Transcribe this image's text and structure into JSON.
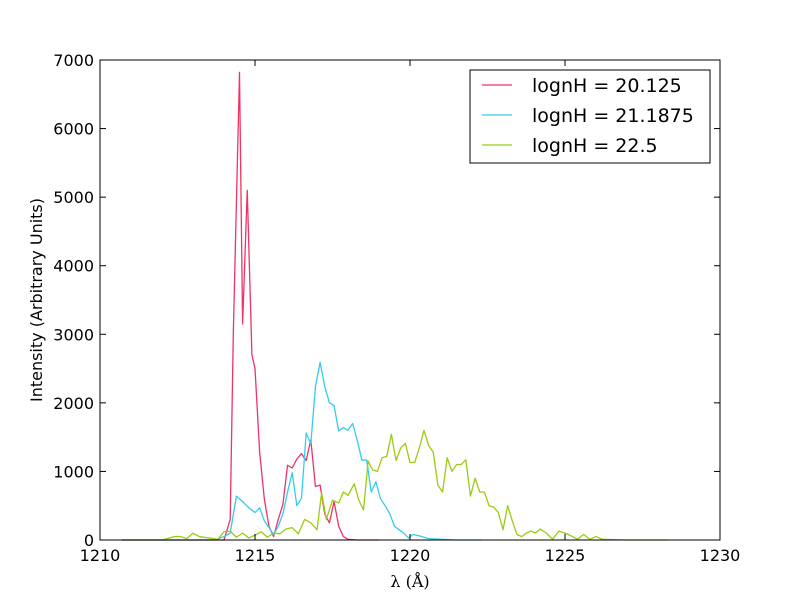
{
  "chart_data": {
    "type": "line",
    "title": "",
    "xlabel": "λ (Å)",
    "ylabel": "Intensity (Arbitrary Units)",
    "xlim": [
      1210,
      1230
    ],
    "ylim": [
      0,
      7000
    ],
    "xticks": [
      1210,
      1215,
      1220,
      1225,
      1230
    ],
    "yticks": [
      0,
      1000,
      2000,
      3000,
      4000,
      5000,
      6000,
      7000
    ],
    "grid": false,
    "legend_position": "top-right",
    "series": [
      {
        "name": "lognH = 20.125",
        "color": "#ee3366",
        "x": [
          1210.7,
          1213.0,
          1214.0,
          1214.2,
          1214.3,
          1214.5,
          1214.6,
          1214.75,
          1214.9,
          1215.0,
          1215.15,
          1215.3,
          1215.45,
          1215.6,
          1215.75,
          1215.9,
          1216.05,
          1216.2,
          1216.35,
          1216.5,
          1216.65,
          1216.8,
          1216.95,
          1217.1,
          1217.25,
          1217.4,
          1217.55,
          1217.7,
          1217.85,
          1218.0,
          1218.3,
          1219.0
        ],
        "y": [
          0,
          0,
          0,
          300,
          3000,
          6820,
          3150,
          5100,
          2700,
          2500,
          1280,
          600,
          200,
          50,
          300,
          520,
          1090,
          1050,
          1180,
          1260,
          1160,
          1460,
          780,
          800,
          380,
          250,
          560,
          200,
          50,
          10,
          0,
          0
        ]
      },
      {
        "name": "lognH = 21.1875",
        "color": "#33ccee",
        "x": [
          1210.7,
          1213.0,
          1213.7,
          1214.0,
          1214.2,
          1214.4,
          1214.6,
          1214.8,
          1215.0,
          1215.15,
          1215.3,
          1215.45,
          1215.6,
          1215.75,
          1215.9,
          1216.05,
          1216.2,
          1216.35,
          1216.5,
          1216.65,
          1216.8,
          1216.95,
          1217.1,
          1217.25,
          1217.4,
          1217.55,
          1217.7,
          1217.85,
          1218.0,
          1218.15,
          1218.3,
          1218.45,
          1218.6,
          1218.75,
          1218.9,
          1219.05,
          1219.2,
          1219.35,
          1219.5,
          1219.65,
          1219.8,
          1219.95,
          1220.1,
          1220.3,
          1220.6,
          1221.5,
          1222.3
        ],
        "y": [
          0,
          0,
          0,
          50,
          100,
          640,
          560,
          470,
          400,
          470,
          280,
          180,
          80,
          200,
          380,
          700,
          980,
          500,
          610,
          1560,
          1400,
          2240,
          2590,
          2240,
          2000,
          1960,
          1590,
          1640,
          1600,
          1700,
          1450,
          1160,
          1170,
          700,
          850,
          600,
          500,
          380,
          200,
          150,
          100,
          30,
          80,
          60,
          20,
          0,
          0
        ]
      },
      {
        "name": "lognH = 22.5",
        "color": "#99cc11",
        "x": [
          1210.7,
          1212.0,
          1212.4,
          1212.6,
          1212.8,
          1213.0,
          1213.2,
          1213.5,
          1213.8,
          1214.0,
          1214.2,
          1214.4,
          1214.6,
          1214.8,
          1215.0,
          1215.2,
          1215.4,
          1215.6,
          1215.8,
          1216.0,
          1216.2,
          1216.4,
          1216.6,
          1216.8,
          1217.0,
          1217.15,
          1217.3,
          1217.5,
          1217.7,
          1217.85,
          1218.0,
          1218.2,
          1218.35,
          1218.5,
          1218.65,
          1218.8,
          1218.95,
          1219.1,
          1219.25,
          1219.4,
          1219.55,
          1219.7,
          1219.85,
          1220.0,
          1220.15,
          1220.3,
          1220.45,
          1220.6,
          1220.75,
          1220.9,
          1221.05,
          1221.2,
          1221.35,
          1221.5,
          1221.65,
          1221.8,
          1221.95,
          1222.1,
          1222.25,
          1222.4,
          1222.55,
          1222.7,
          1222.85,
          1223.0,
          1223.15,
          1223.3,
          1223.45,
          1223.6,
          1223.75,
          1223.9,
          1224.05,
          1224.2,
          1224.4,
          1224.6,
          1224.8,
          1225.0,
          1225.2,
          1225.4,
          1225.6,
          1225.8,
          1226.0,
          1226.2,
          1226.5,
          1227.0,
          1228.3
        ],
        "y": [
          0,
          0,
          50,
          50,
          20,
          100,
          50,
          30,
          10,
          120,
          130,
          40,
          100,
          30,
          70,
          120,
          40,
          100,
          90,
          160,
          180,
          90,
          300,
          250,
          150,
          690,
          300,
          580,
          540,
          700,
          650,
          820,
          580,
          440,
          1150,
          1020,
          1000,
          1200,
          1220,
          1540,
          1160,
          1340,
          1410,
          1130,
          1130,
          1340,
          1600,
          1380,
          1280,
          800,
          700,
          1200,
          1000,
          1100,
          1100,
          1170,
          640,
          900,
          700,
          700,
          500,
          480,
          400,
          150,
          500,
          280,
          80,
          50,
          100,
          130,
          100,
          160,
          100,
          10,
          130,
          100,
          60,
          10,
          80,
          10,
          50,
          10,
          5,
          0,
          0
        ]
      }
    ]
  }
}
